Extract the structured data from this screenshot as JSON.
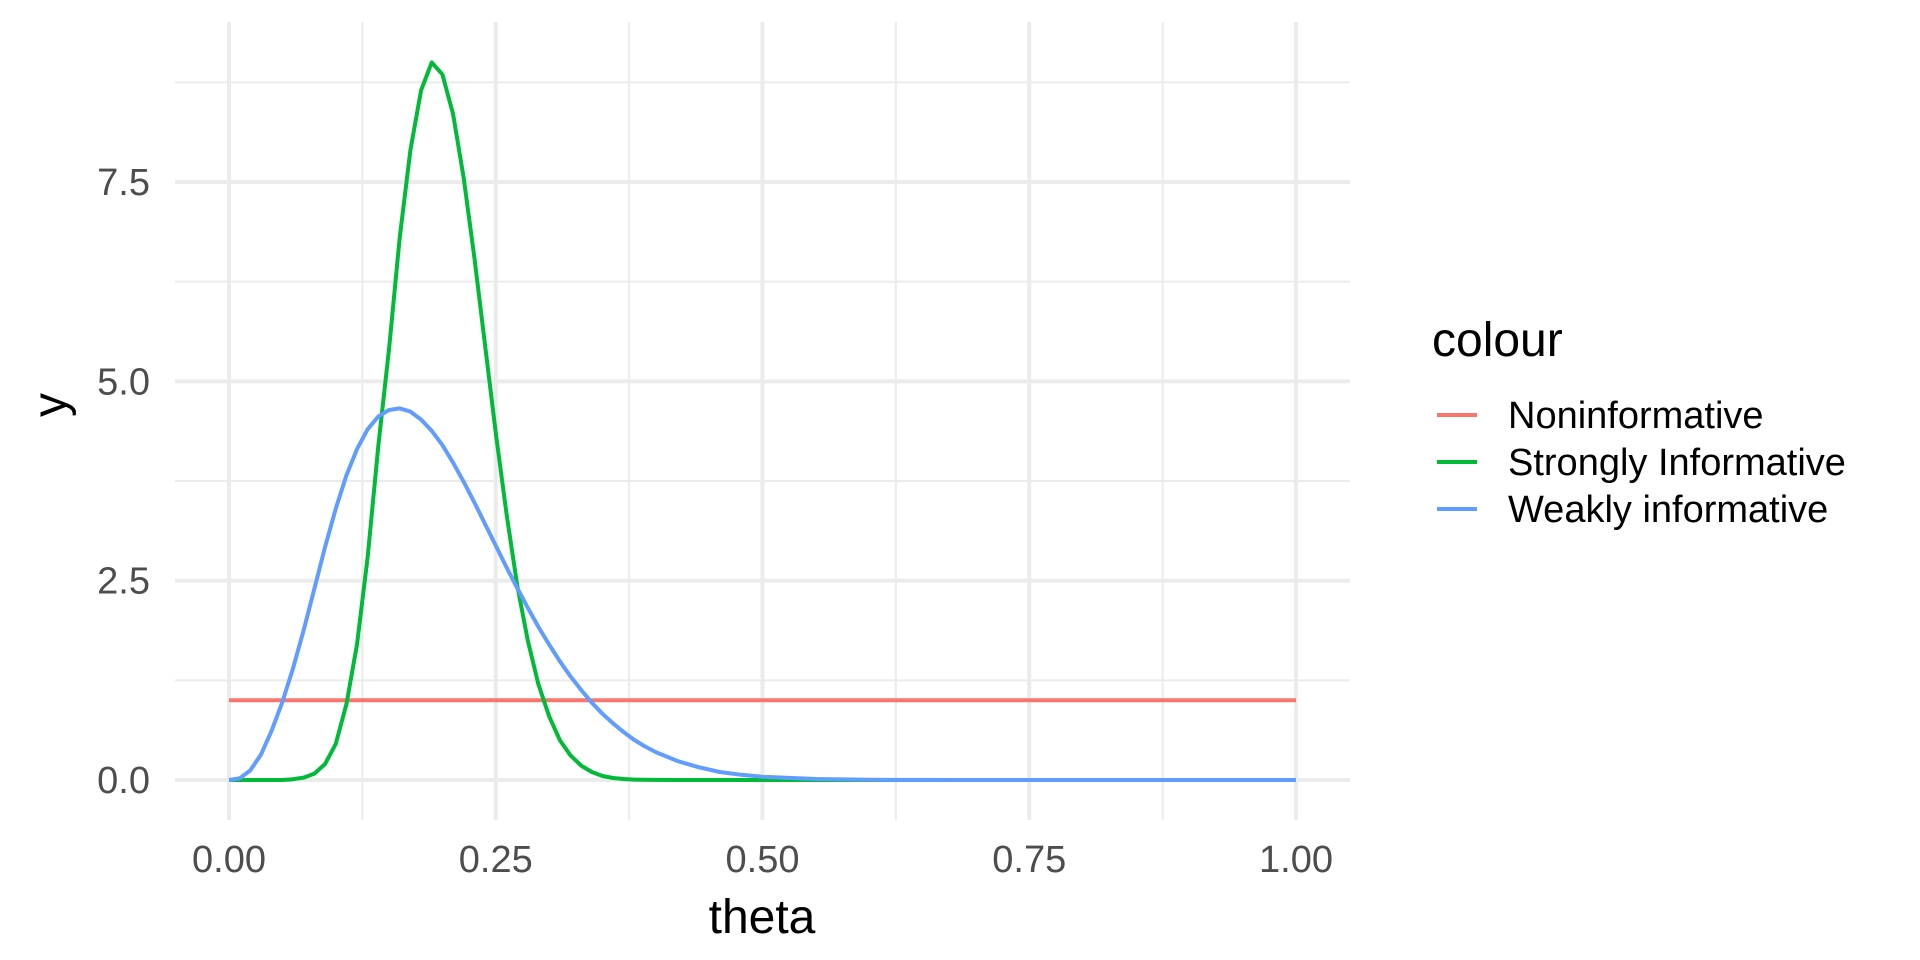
{
  "chart_data": {
    "type": "line",
    "title": "",
    "xlabel": "theta",
    "ylabel": "y",
    "xlim": [
      0,
      1
    ],
    "ylim": [
      0,
      9
    ],
    "x_ticks": [
      "0.00",
      "0.25",
      "0.50",
      "0.75",
      "1.00"
    ],
    "y_ticks": [
      "0.0",
      "2.5",
      "5.0",
      "7.5"
    ],
    "grid": true,
    "legend": {
      "title": "colour",
      "placement": "right",
      "entries": [
        "Noninformative",
        "Strongly Informative",
        "Weakly informative"
      ]
    },
    "x": [
      0.0,
      0.01,
      0.02,
      0.03,
      0.04,
      0.05,
      0.06,
      0.07,
      0.08,
      0.09,
      0.1,
      0.11,
      0.12,
      0.13,
      0.14,
      0.15,
      0.16,
      0.17,
      0.18,
      0.19,
      0.2,
      0.21,
      0.22,
      0.23,
      0.24,
      0.25,
      0.26,
      0.27,
      0.28,
      0.29,
      0.3,
      0.31,
      0.32,
      0.33,
      0.34,
      0.35,
      0.36,
      0.37,
      0.38,
      0.39,
      0.4,
      0.42,
      0.44,
      0.46,
      0.48,
      0.5,
      0.55,
      0.6,
      0.7,
      0.8,
      0.9,
      1.0
    ],
    "series": [
      {
        "name": "Noninformative",
        "color": "#F8766D",
        "values": [
          1,
          1,
          1,
          1,
          1,
          1,
          1,
          1,
          1,
          1,
          1,
          1,
          1,
          1,
          1,
          1,
          1,
          1,
          1,
          1,
          1,
          1,
          1,
          1,
          1,
          1,
          1,
          1,
          1,
          1,
          1,
          1,
          1,
          1,
          1,
          1,
          1,
          1,
          1,
          1,
          1,
          1,
          1,
          1,
          1,
          1,
          1,
          1,
          1,
          1,
          1,
          1
        ]
      },
      {
        "name": "Strongly Informative",
        "color": "#00BA38",
        "values": [
          0.0,
          0.0,
          0.0,
          0.0,
          0.0,
          0.0,
          0.01,
          0.03,
          0.08,
          0.2,
          0.45,
          0.95,
          1.7,
          2.8,
          4.2,
          5.4,
          6.8,
          7.9,
          8.65,
          9.0,
          8.85,
          8.35,
          7.55,
          6.55,
          5.45,
          4.35,
          3.35,
          2.45,
          1.75,
          1.2,
          0.8,
          0.5,
          0.31,
          0.18,
          0.1,
          0.05,
          0.025,
          0.012,
          0.005,
          0.002,
          0.001,
          0.0,
          0.0,
          0.0,
          0.0,
          0.0,
          0.0,
          0.0,
          0.0,
          0.0,
          0.0,
          0.0
        ]
      },
      {
        "name": "Weakly informative",
        "color": "#619CFF",
        "values": [
          0.0,
          0.02,
          0.12,
          0.32,
          0.62,
          0.98,
          1.4,
          1.88,
          2.4,
          2.92,
          3.4,
          3.82,
          4.15,
          4.4,
          4.56,
          4.64,
          4.66,
          4.62,
          4.52,
          4.38,
          4.2,
          3.98,
          3.74,
          3.48,
          3.21,
          2.94,
          2.67,
          2.41,
          2.16,
          1.92,
          1.7,
          1.49,
          1.3,
          1.13,
          0.97,
          0.83,
          0.71,
          0.6,
          0.5,
          0.42,
          0.35,
          0.24,
          0.16,
          0.1,
          0.065,
          0.04,
          0.012,
          0.003,
          0.0,
          0.0,
          0.0,
          0.0
        ]
      }
    ]
  }
}
